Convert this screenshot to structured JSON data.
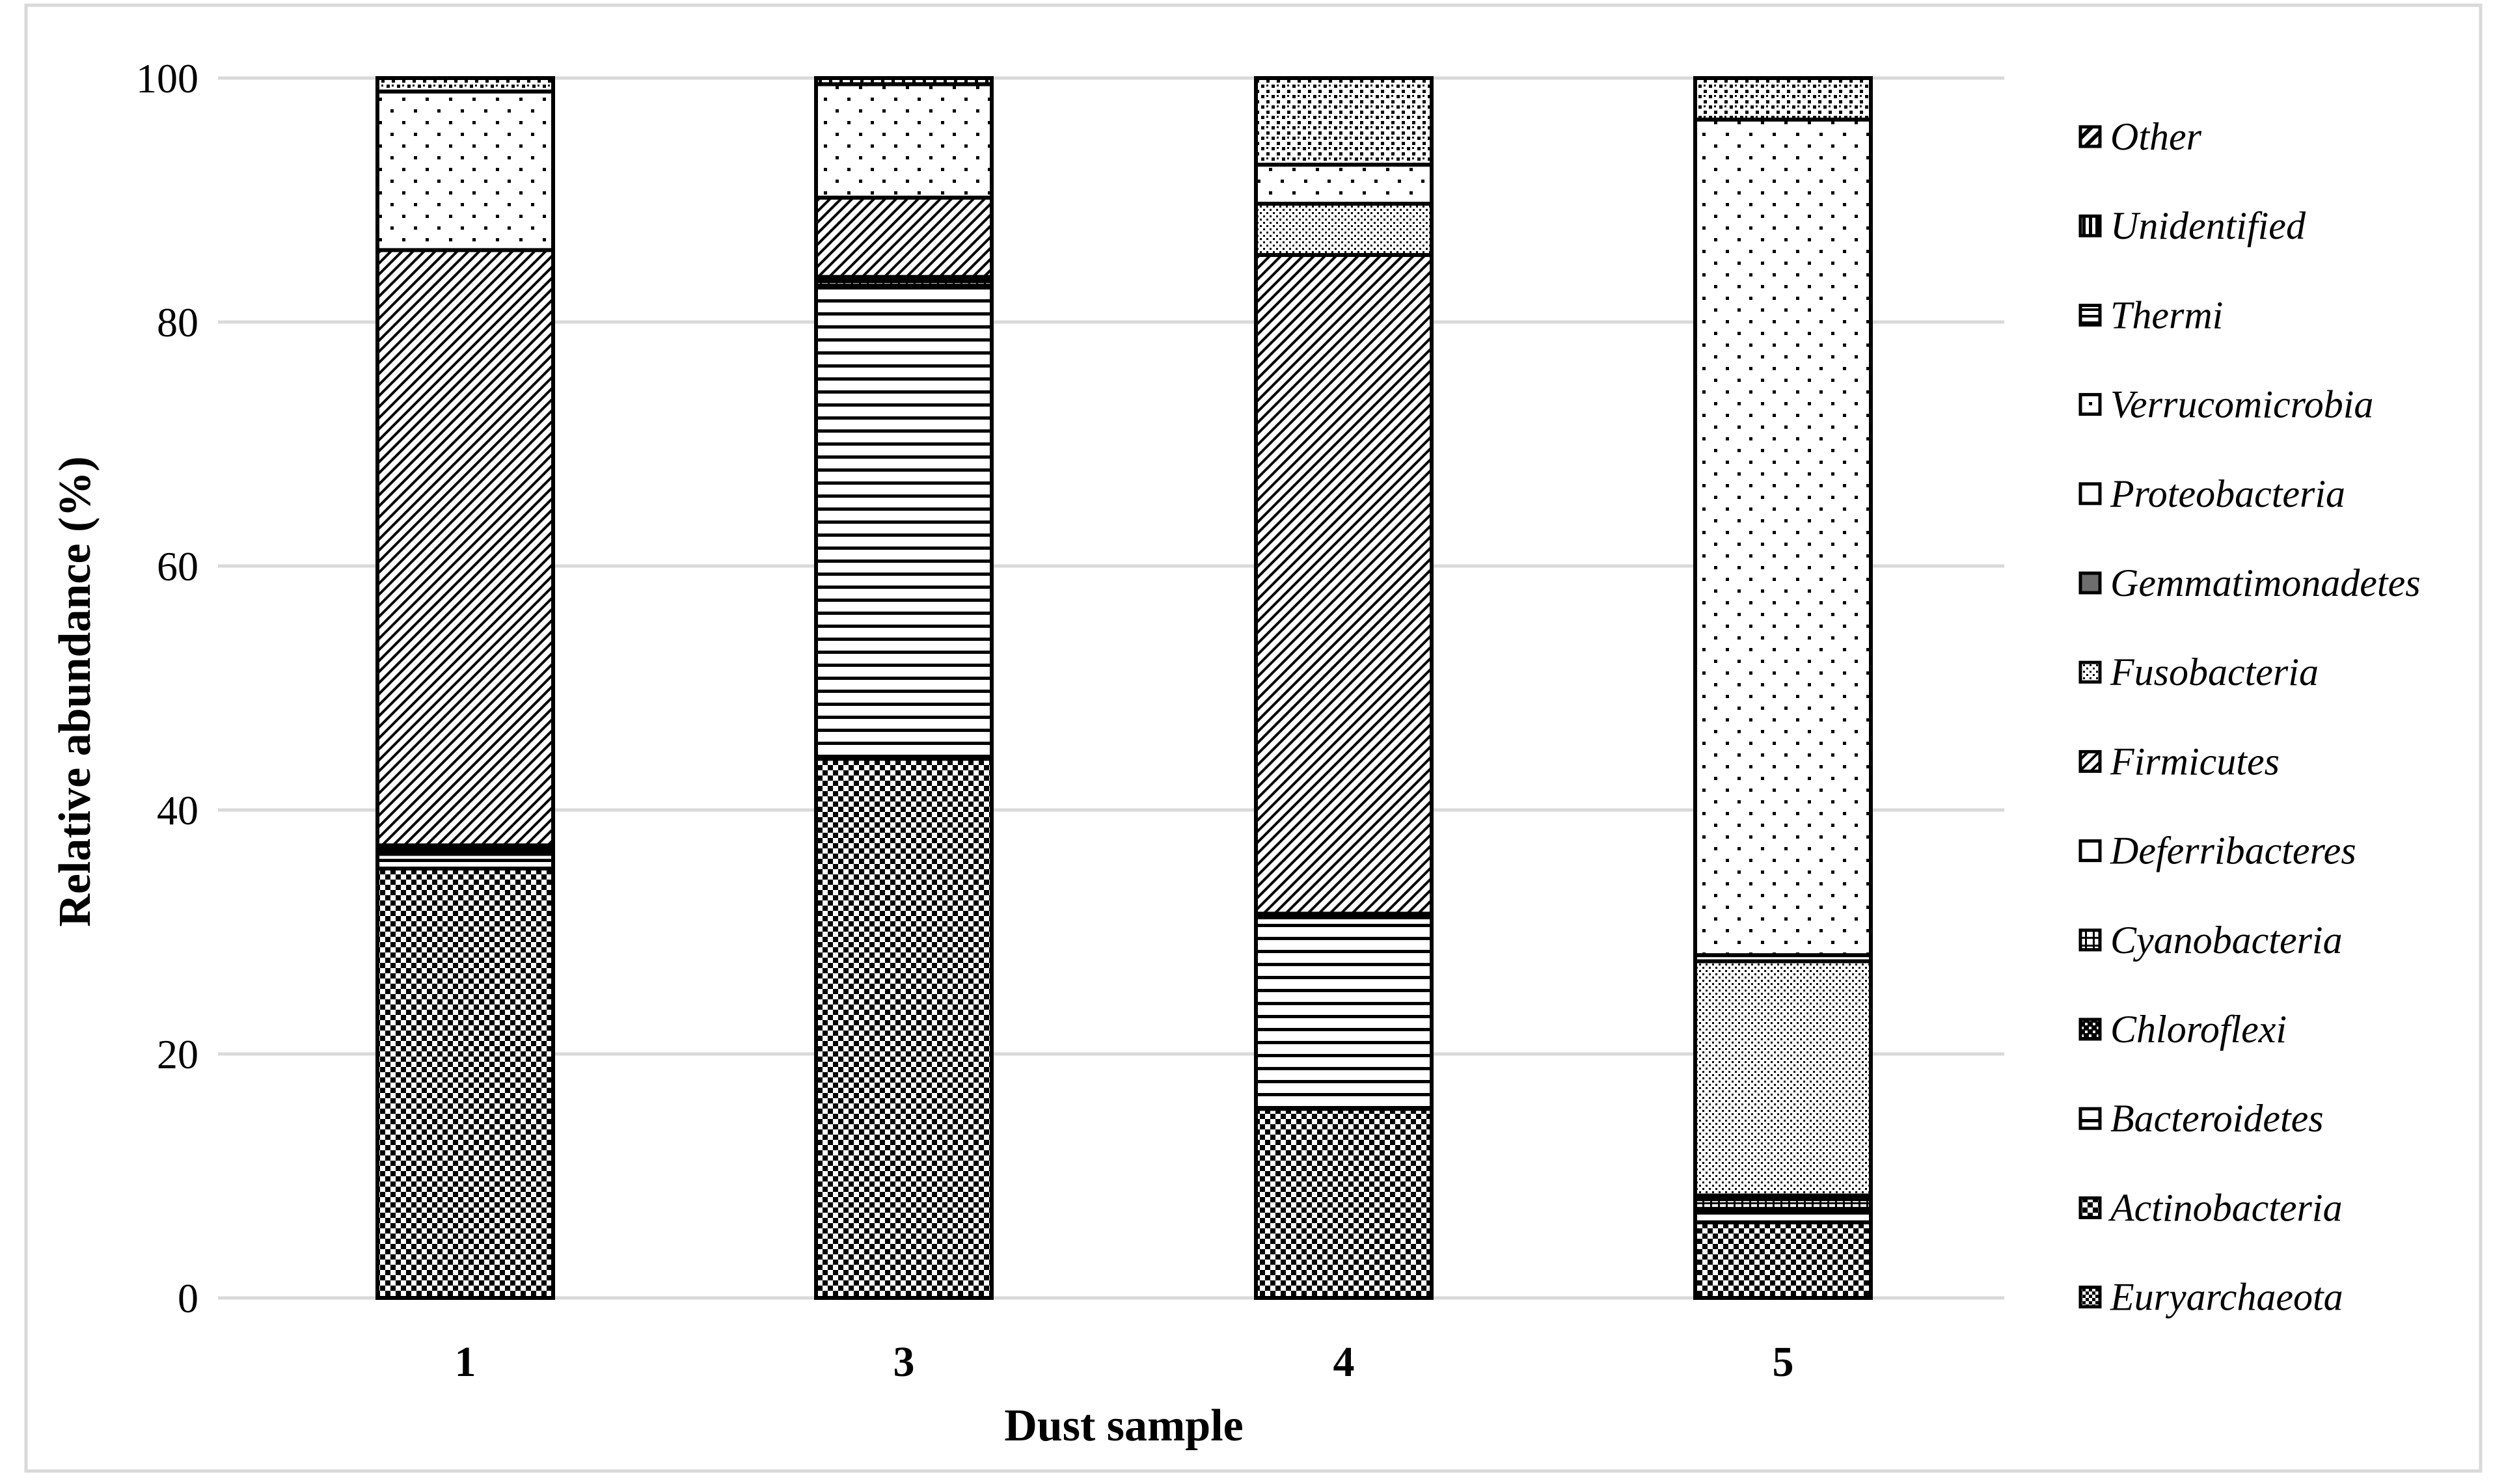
{
  "chart_data": {
    "type": "bar",
    "stacked": true,
    "xlabel": "Dust sample",
    "ylabel": "Relative abundance (%)",
    "ylim": [
      0,
      100
    ],
    "yticks": [
      0,
      20,
      40,
      60,
      80,
      100
    ],
    "grid": true,
    "legend_position": "right",
    "categories": [
      "1",
      "3",
      "4",
      "5"
    ],
    "series": [
      {
        "name": "Euryarchaeota",
        "values": [
          0.0,
          0.0,
          0.0,
          0.0
        ],
        "pattern": "checker-sm"
      },
      {
        "name": "Actinobacteria",
        "values": [
          35.2,
          44.2,
          15.5,
          6.2
        ],
        "pattern": "checker"
      },
      {
        "name": "Bacteroidetes",
        "values": [
          1.2,
          38.8,
          15.7,
          0.8
        ],
        "pattern": "hlines"
      },
      {
        "name": "Chloroflexi",
        "values": [
          0.2,
          0.0,
          0.0,
          0.3
        ],
        "pattern": "checker-bold"
      },
      {
        "name": "Cyanobacteria",
        "values": [
          0.3,
          0.5,
          0.3,
          0.8
        ],
        "pattern": "grid"
      },
      {
        "name": "Deferribacteres",
        "values": [
          0.2,
          0.0,
          0.0,
          0.3
        ],
        "pattern": "solid-light"
      },
      {
        "name": "Firmicutes",
        "values": [
          48.8,
          0.0,
          54.0,
          0.0
        ],
        "pattern": "diag"
      },
      {
        "name": "Fusobacteria",
        "values": [
          0.0,
          0.2,
          4.2,
          19.2
        ],
        "pattern": "fine-dots"
      },
      {
        "name": "Gemmatimonadetes",
        "values": [
          0.0,
          0.0,
          0.0,
          0.0
        ],
        "pattern": "gray"
      },
      {
        "name": "Proteobacteria",
        "values": [
          0.0,
          0.0,
          0.0,
          0.5
        ],
        "pattern": "white"
      },
      {
        "name": "Verrucomicrobia",
        "values": [
          13.0,
          0.0,
          0.0,
          0.0
        ],
        "pattern": "dots"
      },
      {
        "name": "Thermi",
        "values": [
          0.0,
          6.5,
          0.0,
          0.0
        ],
        "pattern": "diag"
      },
      {
        "name": "Unidentified",
        "values": [
          0.0,
          9.3,
          3.2,
          68.5
        ],
        "pattern": "dots"
      },
      {
        "name": "Other",
        "values": [
          1.1,
          0.5,
          7.1,
          3.4
        ],
        "pattern": "mixed"
      }
    ]
  },
  "legend": {
    "items": [
      {
        "name": "Other",
        "swatch": "diag-bold"
      },
      {
        "name": "Unidentified",
        "swatch": "vlines"
      },
      {
        "name": "Thermi",
        "swatch": "hsplit"
      },
      {
        "name": "Verrucomicrobia",
        "swatch": "dots"
      },
      {
        "name": "Proteobacteria",
        "swatch": "white"
      },
      {
        "name": "Gemmatimonadetes",
        "swatch": "gray"
      },
      {
        "name": "Fusobacteria",
        "swatch": "fine-dots"
      },
      {
        "name": "Firmicutes",
        "swatch": "diag"
      },
      {
        "name": "Deferribacteres",
        "swatch": "solid-light"
      },
      {
        "name": "Cyanobacteria",
        "swatch": "grid"
      },
      {
        "name": "Chloroflexi",
        "swatch": "checker-bold"
      },
      {
        "name": "Bacteroidetes",
        "swatch": "hlines"
      },
      {
        "name": "Actinobacteria",
        "swatch": "checker"
      },
      {
        "name": "Euryarchaeota",
        "swatch": "checker-sm"
      }
    ]
  }
}
